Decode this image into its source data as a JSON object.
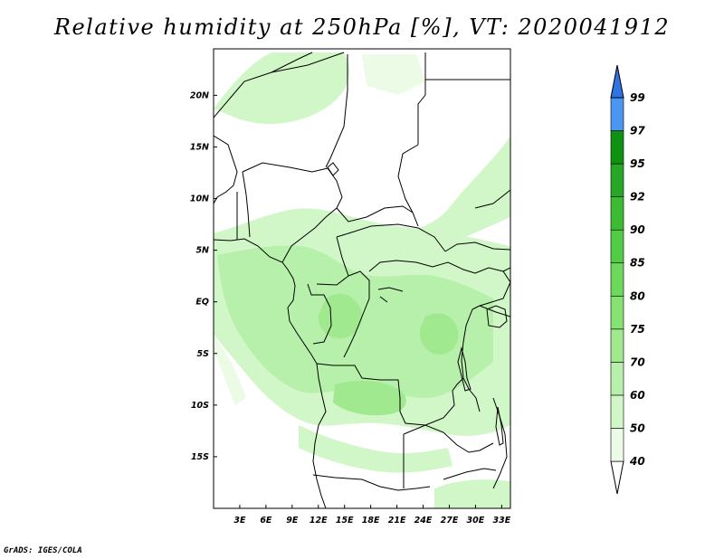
{
  "title": "Relative humidity at 250hPa [%], VT: 2020041912",
  "credit": "GrADS: IGES/COLA",
  "map": {
    "lon_range": [
      0,
      34
    ],
    "lat_range": [
      -20,
      24.5
    ],
    "lon_ticks": [
      {
        "value": 3,
        "label": "3E"
      },
      {
        "value": 6,
        "label": "6E"
      },
      {
        "value": 9,
        "label": "9E"
      },
      {
        "value": 12,
        "label": "12E"
      },
      {
        "value": 15,
        "label": "15E"
      },
      {
        "value": 18,
        "label": "18E"
      },
      {
        "value": 21,
        "label": "21E"
      },
      {
        "value": 24,
        "label": "24E"
      },
      {
        "value": 27,
        "label": "27E"
      },
      {
        "value": 30,
        "label": "30E"
      },
      {
        "value": 33,
        "label": "33E"
      }
    ],
    "lat_ticks": [
      {
        "value": 20,
        "label": "20N"
      },
      {
        "value": 15,
        "label": "15N"
      },
      {
        "value": 10,
        "label": "10N"
      },
      {
        "value": 5,
        "label": "5N"
      },
      {
        "value": 0,
        "label": "EQ"
      },
      {
        "value": -5,
        "label": "5S"
      },
      {
        "value": -10,
        "label": "10S"
      },
      {
        "value": -15,
        "label": "15S"
      }
    ]
  },
  "colorbar": {
    "levels": [
      "40",
      "50",
      "60",
      "70",
      "75",
      "80",
      "85",
      "90",
      "92",
      "95",
      "97",
      "99"
    ],
    "colors": [
      "#ebfbe6",
      "#d1f6c8",
      "#b6f0aa",
      "#a0e98f",
      "#85e273",
      "#6cd95b",
      "#52cb45",
      "#3cbc33",
      "#26a826",
      "#0f9210",
      "#4a96f2",
      "#2f74e3",
      "#1f55c2"
    ],
    "lower_end_color": "#ffffff"
  },
  "colors": {
    "land_outline": "#000000",
    "humid_light": "#d1f6c8",
    "humid_mid": "#b6f0aa",
    "humid_strong": "#a0e98f"
  }
}
